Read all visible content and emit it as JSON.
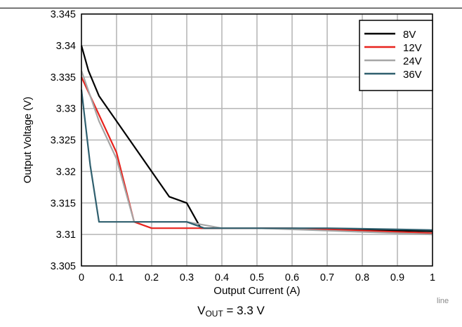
{
  "chart_data": {
    "type": "line",
    "xlabel": "Output Current (A)",
    "ylabel": "Output Voltage (V)",
    "xlim": [
      0,
      1
    ],
    "ylim": [
      3.305,
      3.345
    ],
    "x_ticks": [
      "0",
      "0.1",
      "0.2",
      "0.3",
      "0.4",
      "0.5",
      "0.6",
      "0.7",
      "0.8",
      "0.9",
      "1"
    ],
    "y_ticks": [
      "3.305",
      "3.31",
      "3.315",
      "3.32",
      "3.325",
      "3.33",
      "3.335",
      "3.34",
      "3.345"
    ],
    "grid": true,
    "legend_position": "top-right",
    "series": [
      {
        "name": "8V",
        "color": "#000000",
        "x": [
          0,
          0.02,
          0.05,
          0.1,
          0.15,
          0.2,
          0.25,
          0.3,
          0.34,
          0.4,
          0.5,
          0.6,
          0.7,
          0.8,
          0.9,
          1.0
        ],
        "y": [
          3.34,
          3.336,
          3.332,
          3.328,
          3.324,
          3.32,
          3.316,
          3.315,
          3.311,
          3.311,
          3.311,
          3.3109,
          3.3108,
          3.3107,
          3.3106,
          3.3105
        ]
      },
      {
        "name": "12V",
        "color": "#e8231d",
        "x": [
          0,
          0.05,
          0.1,
          0.15,
          0.2,
          0.25,
          0.3,
          0.35,
          0.4,
          0.5,
          0.6,
          0.7,
          0.8,
          0.9,
          1.0
        ],
        "y": [
          3.335,
          3.329,
          3.323,
          3.312,
          3.311,
          3.311,
          3.311,
          3.311,
          3.311,
          3.311,
          3.311,
          3.3108,
          3.3106,
          3.3104,
          3.3102
        ]
      },
      {
        "name": "24V",
        "color": "#a6a6a6",
        "x": [
          0,
          0.05,
          0.1,
          0.15,
          0.2,
          0.25,
          0.3,
          0.35,
          0.4,
          0.5,
          0.6,
          0.7,
          0.8,
          0.9,
          1.0
        ],
        "y": [
          3.336,
          3.328,
          3.322,
          3.312,
          3.312,
          3.312,
          3.312,
          3.3115,
          3.311,
          3.311,
          3.3108,
          3.3106,
          3.3104,
          3.3102,
          3.31
        ]
      },
      {
        "name": "36V",
        "color": "#2f5f6e",
        "x": [
          0,
          0.025,
          0.05,
          0.1,
          0.15,
          0.2,
          0.25,
          0.3,
          0.35,
          0.4,
          0.5,
          0.6,
          0.7,
          0.8,
          0.9,
          1.0
        ],
        "y": [
          3.333,
          3.321,
          3.312,
          3.312,
          3.312,
          3.312,
          3.312,
          3.312,
          3.311,
          3.311,
          3.311,
          3.311,
          3.311,
          3.3109,
          3.3108,
          3.3107
        ]
      }
    ]
  },
  "caption": {
    "prefix": "V",
    "subscript": "OUT",
    "suffix": " = 3.3 V"
  },
  "corner_tag": "line"
}
